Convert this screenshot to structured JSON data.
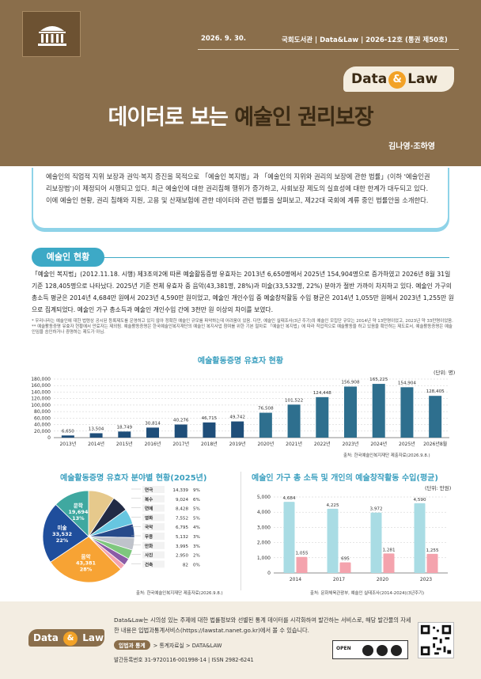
{
  "header": {
    "date": "2026. 9. 30.",
    "publication": "국회도서관 | Data&Law | 2026-12호 (통권 제50호)",
    "badge_data": "Data",
    "badge_amp": "&",
    "badge_law": "Law",
    "title_plain": "데이터로 보는 ",
    "title_highlight": "예술인 권리보장",
    "authors": "김나영·조하영"
  },
  "abstract": "예술인의 직업적 지위 보장과 권익·복지 증진을 목적으로 「예술인 복지법」과 「예술인의 지위와 권리의 보장에 관한 법률」(이하 '예술인권리보장법')이 제정되어 시행되고 있다. 최근 예술인에 대한 권리침해 행위가 증가하고, 사회보장 제도의 실효성에 대한 한계가 대두되고 있다. 이에 예술인 현황, 권리 침해와 지원, 고용 및 산재보험에 관한 데이터와 관련 법률을 살펴보고, 제22대 국회에 계류 중인 법률안을 소개한다.",
  "section_title": "예술인 현황",
  "body_text": "「예술인 복지법」(2012.11.18. 시행) 제3조의2에 따른 예술활동증명 유효자는 2013년 6,650명에서 2025년 154,904명으로 증가하였고 2026년 8월 31일 기준 128,405명으로 나타났다. 2025년 기준 전체 유효자 중 음악(43,381명, 28%)과 미술(33,532명, 22%) 분야가 절반 가까이 차지하고 있다. 예술인 가구의 총소득 평균은 2014년 4,684만 원에서 2023년 4,590만 원이었고, 예술인 개인수입 중 예술창작활동 수입 평균은 2014년 1,055만 원에서 2023년 1,255만 원으로 집계되었다. 예술인 가구 총소득과 예술인 개인수입 간에 3천만 원 이상의 차이를 보였다.",
  "notes": [
    "* 우리나라는 예술인에 대한 법령상 공시된 등록제도를 운영하고 있지 않아 정확한 예술인 규모를 파악하는데 어려움이 있음. 다만, 예술인 실태조사(3년 주기)의 예술인 모집단 규모는 2014년 약 13만명이었고, 2023년 약 33만명이었음.",
    "** 예술활동증명 유효자 현황에서 만료자는 제외됨. 예술활동증명은 한국예술인복지재단의 예술인 복지사업 참여를 위한 기본 절차로 「예술인 복지법」에 따라 직업적으로 예술활동을 하고 있음을 확인하는 제도로서, 예술활동증명은 예술인임을 승인하거나 증명하는 제도가 아님."
  ],
  "chart1_unit": "(단위: 명)",
  "chart1_source": "출처: 한국예술인복지재단 제출자료(2026.9.8.)",
  "chart2_source": "출처: 한국예술인복지재단 제출자료(2026.9.8.)",
  "chart3_unit": "(단위: 만원)",
  "chart3_source": "출처: 문화체육관광부, 예술인 실태조사(2014-2024)(3년주기)",
  "footer": {
    "intro": "Data&Law는 시의성 있는 주제에 대한 법률정보와 선별된 통계 데이터를 시각화하여 발간하는 서비스로, 해당 발간물의 자세한 내용은 입법과통계서비스(https://lawstat.nanet.go.kr)에서 볼 수 있습니다.",
    "nav_label": "입법과 통계",
    "nav_path": "> 통계자료실 > DATA&LAW",
    "reg": "발간등록번호  31-9720116-001998-14  |  ISSN 2982-6241",
    "kogl": "OPEN"
  },
  "chart_data": [
    {
      "type": "bar",
      "title": "예술활동증명 유효자 현황",
      "categories": [
        "2013년",
        "2014년",
        "2015년",
        "2016년",
        "2017년",
        "2018년",
        "2019년",
        "2020년",
        "2021년",
        "2022년",
        "2023년",
        "2024년",
        "2025년",
        "2026년8월"
      ],
      "values": [
        6650,
        13504,
        18749,
        30814,
        40276,
        46715,
        49742,
        76508,
        101522,
        124448,
        156908,
        165225,
        154904,
        128405
      ],
      "value_labels": [
        "6,650",
        "13,504",
        "18,749",
        "30,814",
        "40,276",
        "46,715",
        "49,742",
        "76,508",
        "101,522",
        "124,448",
        "156,908",
        "165,225",
        "154,904",
        "128,405"
      ],
      "yticks": [
        "0",
        "20,000",
        "40,000",
        "60,000",
        "80,000",
        "100,000",
        "120,000",
        "140,000",
        "160,000",
        "180,000"
      ],
      "ylim": [
        0,
        180000
      ],
      "colors": {
        "early": "#1f4e79",
        "late": "#2e6f8e"
      }
    },
    {
      "type": "pie",
      "title": "예술활동증명 유효자 분야별 현황(2025년)",
      "slices": [
        {
          "label": "음악",
          "value": 43381,
          "value_label": "43,381",
          "pct": "28%",
          "color": "#f7a334"
        },
        {
          "label": "미술",
          "value": 33532,
          "value_label": "33,532",
          "pct": "22%",
          "color": "#1f4e9c"
        },
        {
          "label": "문학",
          "value": 19694,
          "value_label": "19,694",
          "pct": "13%",
          "color": "#3fa8a0"
        },
        {
          "label": "연극",
          "value": 14339,
          "value_label": "14,339",
          "pct": "9%",
          "color": "#e6c98c"
        },
        {
          "label": "복수",
          "value": 9024,
          "value_label": "9,024",
          "pct": "6%",
          "color": "#222b45"
        },
        {
          "label": "연예",
          "value": 8428,
          "value_label": "8,428",
          "pct": "5%",
          "color": "#67c6e0"
        },
        {
          "label": "영화",
          "value": 7552,
          "value_label": "7,552",
          "pct": "5%",
          "color": "#274a8a"
        },
        {
          "label": "국악",
          "value": 6795,
          "value_label": "6,795",
          "pct": "4%",
          "color": "#bfc3cb"
        },
        {
          "label": "무용",
          "value": 5132,
          "value_label": "5,132",
          "pct": "3%",
          "color": "#7ec77e"
        },
        {
          "label": "만화",
          "value": 3995,
          "value_label": "3,995",
          "pct": "3%",
          "color": "#8a5ba6"
        },
        {
          "label": "사진",
          "value": 2950,
          "value_label": "2,950",
          "pct": "2%",
          "color": "#f4a3b0"
        },
        {
          "label": "건축",
          "value": 82,
          "value_label": "82",
          "pct": "0%",
          "color": "#e04a4a"
        }
      ],
      "legend_value_colors": [
        "#c8a35a",
        "#444",
        "#3fa8c8",
        "#444",
        "#444",
        "#5aa84a",
        "#444",
        "#e06a80",
        "#e04a4a"
      ]
    },
    {
      "type": "bar",
      "title": "예술인 가구 총 소득 및 개인의 예술창작활동 수입(평균)",
      "categories": [
        "2014",
        "2017",
        "2020",
        "2023"
      ],
      "series": [
        {
          "values": [
            4684,
            4225,
            3972,
            4590
          ],
          "labels": [
            "4,684",
            "4,225",
            "3,972",
            "4,590"
          ],
          "color": "#a9dce4"
        },
        {
          "values": [
            1055,
            695,
            1281,
            1255
          ],
          "labels": [
            "1,055",
            "695",
            "1,281",
            "1,255"
          ],
          "color": "#f4a3ad"
        }
      ],
      "yticks": [
        "0",
        "1,000",
        "2,000",
        "3,000",
        "4,000",
        "5,000"
      ],
      "ylim": [
        0,
        5000
      ]
    }
  ]
}
